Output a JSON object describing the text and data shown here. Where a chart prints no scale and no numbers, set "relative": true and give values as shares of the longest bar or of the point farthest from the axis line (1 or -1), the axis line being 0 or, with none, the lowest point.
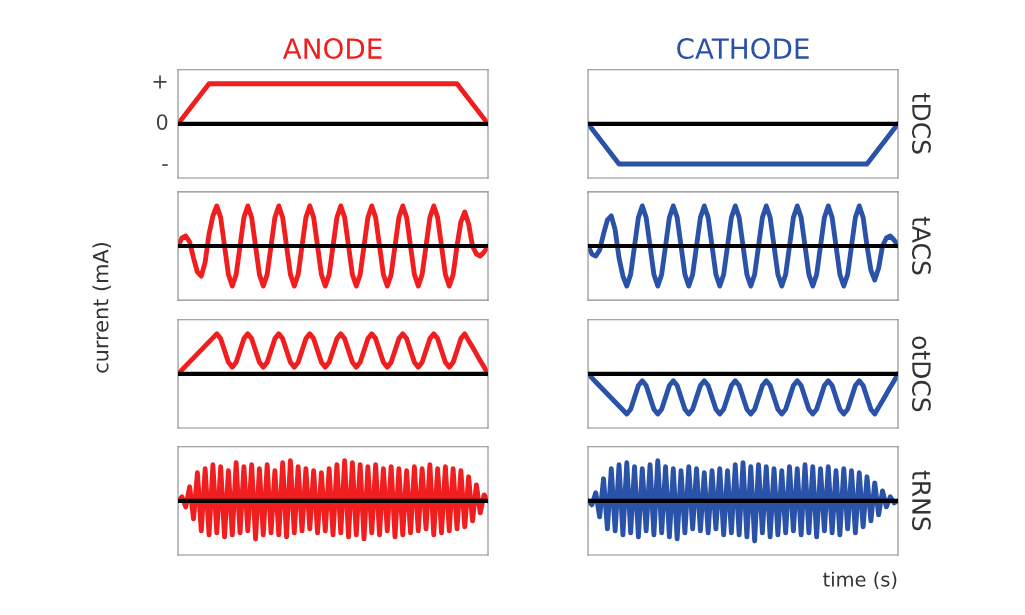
{
  "chart_data": [
    {
      "type": "line",
      "title": "ANODE",
      "ylabel": "current (mA)",
      "relative": true,
      "annotations": [
        "+",
        "0",
        "-"
      ],
      "categories": [
        null,
        null,
        null,
        null,
        null,
        null,
        null,
        null,
        null,
        null,
        null
      ],
      "series": [
        {
          "color": "#f01e1e",
          "values": [
            0,
            1,
            1,
            1,
            1,
            1,
            1,
            1,
            1,
            1,
            0
          ]
        }
      ],
      "ref_lines": [
        {
          "axis": "y",
          "value": 0,
          "color": "#000000"
        }
      ]
    },
    {
      "type": "line",
      "title": "CATHODE",
      "y2label": "tDCS",
      "relative": true,
      "categories": [
        null,
        null,
        null,
        null,
        null,
        null,
        null,
        null,
        null,
        null,
        null
      ],
      "series": [
        {
          "color": "#2a52a8",
          "values": [
            0,
            -1,
            -1,
            -1,
            -1,
            -1,
            -1,
            -1,
            -1,
            -1,
            0
          ]
        }
      ],
      "ref_lines": [
        {
          "axis": "y",
          "value": 0,
          "color": "#000000"
        }
      ]
    },
    {
      "type": "line",
      "relative": true,
      "categories": [
        null,
        null,
        null,
        null,
        null,
        null,
        null,
        null,
        null,
        null,
        null,
        null,
        null,
        null,
        null,
        null,
        null,
        null,
        null,
        null,
        null,
        null,
        null,
        null,
        null,
        null,
        null,
        null,
        null,
        null,
        null,
        null,
        null,
        null,
        null,
        null,
        null,
        null,
        null,
        null,
        null,
        null,
        null,
        null,
        null,
        null,
        null,
        null,
        null,
        null,
        null,
        null,
        null,
        null,
        null,
        null,
        null,
        null,
        null,
        null,
        null,
        null,
        null,
        null,
        null,
        null,
        null,
        null,
        null,
        null,
        null,
        null,
        null,
        null,
        null,
        null,
        null,
        null,
        null,
        null,
        null
      ],
      "series": [
        {
          "color": "#f01e1e",
          "values": [
            0,
            0.2,
            0.25,
            0.1,
            -0.3,
            -0.65,
            -0.75,
            -0.4,
            0.3,
            0.75,
            1,
            0.71,
            0,
            -0.71,
            -1,
            -0.71,
            0,
            0.71,
            1,
            0.71,
            0,
            -0.71,
            -1,
            -0.71,
            0,
            0.71,
            1,
            0.71,
            0,
            -0.71,
            -1,
            -0.71,
            0,
            0.71,
            1,
            0.71,
            0,
            -0.71,
            -1,
            -0.71,
            0,
            0.71,
            1,
            0.71,
            0,
            -0.71,
            -1,
            -0.71,
            0,
            0.71,
            1,
            0.71,
            0,
            -0.71,
            -1,
            -0.71,
            0,
            0.71,
            1,
            0.71,
            0,
            -0.71,
            -1,
            -0.71,
            0,
            0.71,
            1,
            0.71,
            0,
            -0.71,
            -1,
            -0.71,
            0,
            0.6,
            0.85,
            0.55,
            0,
            -0.2,
            -0.25,
            -0.15,
            0
          ]
        }
      ],
      "ref_lines": [
        {
          "axis": "y",
          "value": 0,
          "color": "#000000"
        }
      ]
    },
    {
      "type": "line",
      "y2label": "tACS",
      "relative": true,
      "categories": [
        null,
        null,
        null,
        null,
        null,
        null,
        null,
        null,
        null,
        null,
        null,
        null,
        null,
        null,
        null,
        null,
        null,
        null,
        null,
        null,
        null,
        null,
        null,
        null,
        null,
        null,
        null,
        null,
        null,
        null,
        null,
        null,
        null,
        null,
        null,
        null,
        null,
        null,
        null,
        null,
        null,
        null,
        null,
        null,
        null,
        null,
        null,
        null,
        null,
        null,
        null,
        null,
        null,
        null,
        null,
        null,
        null,
        null,
        null,
        null,
        null,
        null,
        null,
        null,
        null,
        null,
        null,
        null,
        null,
        null,
        null,
        null,
        null,
        null,
        null,
        null,
        null,
        null,
        null,
        null,
        null
      ],
      "series": [
        {
          "color": "#2a52a8",
          "values": [
            0,
            -0.2,
            -0.25,
            -0.1,
            0.3,
            0.65,
            0.75,
            0.4,
            -0.3,
            -0.75,
            -1,
            -0.71,
            0,
            0.71,
            1,
            0.71,
            0,
            -0.71,
            -1,
            -0.71,
            0,
            0.71,
            1,
            0.71,
            0,
            -0.71,
            -1,
            -0.71,
            0,
            0.71,
            1,
            0.71,
            0,
            -0.71,
            -1,
            -0.71,
            0,
            0.71,
            1,
            0.71,
            0,
            -0.71,
            -1,
            -0.71,
            0,
            0.71,
            1,
            0.71,
            0,
            -0.71,
            -1,
            -0.71,
            0,
            0.71,
            1,
            0.71,
            0,
            -0.71,
            -1,
            -0.71,
            0,
            0.71,
            1,
            0.71,
            0,
            -0.71,
            -1,
            -0.71,
            0,
            0.71,
            1,
            0.71,
            0,
            -0.6,
            -0.85,
            -0.55,
            0,
            0.2,
            0.25,
            0.15,
            0
          ]
        }
      ],
      "ref_lines": [
        {
          "axis": "y",
          "value": 0,
          "color": "#000000"
        }
      ]
    },
    {
      "type": "line",
      "relative": true,
      "categories": [
        null,
        null,
        null,
        null,
        null,
        null,
        null,
        null,
        null,
        null,
        null,
        null,
        null,
        null,
        null,
        null,
        null,
        null,
        null,
        null,
        null,
        null,
        null,
        null,
        null,
        null,
        null,
        null,
        null,
        null,
        null,
        null,
        null,
        null,
        null,
        null,
        null,
        null,
        null,
        null,
        null,
        null,
        null,
        null,
        null,
        null,
        null,
        null,
        null,
        null,
        null,
        null,
        null,
        null,
        null,
        null,
        null,
        null,
        null,
        null,
        null,
        null,
        null,
        null,
        null,
        null,
        null,
        null,
        null,
        null,
        null,
        null,
        null,
        null,
        null,
        null,
        null,
        null,
        null,
        null,
        null
      ],
      "series": [
        {
          "color": "#f01e1e",
          "values": [
            0,
            0.1,
            0.2,
            0.3,
            0.4,
            0.5,
            0.6,
            0.7,
            0.8,
            0.9,
            1,
            0.88,
            0.585,
            0.29,
            0.17,
            0.29,
            0.585,
            0.88,
            1,
            0.88,
            0.585,
            0.29,
            0.17,
            0.29,
            0.585,
            0.88,
            1,
            0.88,
            0.585,
            0.29,
            0.17,
            0.29,
            0.585,
            0.88,
            1,
            0.88,
            0.585,
            0.29,
            0.17,
            0.29,
            0.585,
            0.88,
            1,
            0.88,
            0.585,
            0.29,
            0.17,
            0.29,
            0.585,
            0.88,
            1,
            0.88,
            0.585,
            0.29,
            0.17,
            0.29,
            0.585,
            0.88,
            1,
            0.88,
            0.585,
            0.29,
            0.17,
            0.29,
            0.585,
            0.88,
            1,
            0.88,
            0.585,
            0.29,
            0.17,
            0.29,
            0.585,
            0.88,
            1,
            0.83,
            0.67,
            0.5,
            0.33,
            0.17,
            0
          ]
        }
      ],
      "ref_lines": [
        {
          "axis": "y",
          "value": 0,
          "color": "#000000"
        }
      ]
    },
    {
      "type": "line",
      "y2label": "otDCS",
      "relative": true,
      "categories": [
        null,
        null,
        null,
        null,
        null,
        null,
        null,
        null,
        null,
        null,
        null,
        null,
        null,
        null,
        null,
        null,
        null,
        null,
        null,
        null,
        null,
        null,
        null,
        null,
        null,
        null,
        null,
        null,
        null,
        null,
        null,
        null,
        null,
        null,
        null,
        null,
        null,
        null,
        null,
        null,
        null,
        null,
        null,
        null,
        null,
        null,
        null,
        null,
        null,
        null,
        null,
        null,
        null,
        null,
        null,
        null,
        null,
        null,
        null,
        null,
        null,
        null,
        null,
        null,
        null,
        null,
        null,
        null,
        null,
        null,
        null,
        null,
        null,
        null,
        null,
        null,
        null,
        null,
        null,
        null,
        null
      ],
      "series": [
        {
          "color": "#2a52a8",
          "values": [
            0,
            -0.1,
            -0.2,
            -0.3,
            -0.4,
            -0.5,
            -0.6,
            -0.7,
            -0.8,
            -0.9,
            -1,
            -0.88,
            -0.585,
            -0.29,
            -0.17,
            -0.29,
            -0.585,
            -0.88,
            -1,
            -0.88,
            -0.585,
            -0.29,
            -0.17,
            -0.29,
            -0.585,
            -0.88,
            -1,
            -0.88,
            -0.585,
            -0.29,
            -0.17,
            -0.29,
            -0.585,
            -0.88,
            -1,
            -0.88,
            -0.585,
            -0.29,
            -0.17,
            -0.29,
            -0.585,
            -0.88,
            -1,
            -0.88,
            -0.585,
            -0.29,
            -0.17,
            -0.29,
            -0.585,
            -0.88,
            -1,
            -0.88,
            -0.585,
            -0.29,
            -0.17,
            -0.29,
            -0.585,
            -0.88,
            -1,
            -0.88,
            -0.585,
            -0.29,
            -0.17,
            -0.29,
            -0.585,
            -0.88,
            -1,
            -0.88,
            -0.585,
            -0.29,
            -0.17,
            -0.29,
            -0.585,
            -0.88,
            -1,
            -0.83,
            -0.67,
            -0.5,
            -0.33,
            -0.17,
            0
          ]
        }
      ],
      "ref_lines": [
        {
          "axis": "y",
          "value": 0,
          "color": "#000000"
        }
      ]
    },
    {
      "type": "line",
      "relative": true,
      "categories": [
        null,
        null,
        null,
        null,
        null,
        null,
        null,
        null,
        null,
        null,
        null,
        null,
        null,
        null,
        null,
        null,
        null,
        null,
        null,
        null,
        null,
        null,
        null,
        null,
        null,
        null,
        null,
        null,
        null,
        null,
        null,
        null,
        null,
        null,
        null,
        null,
        null,
        null,
        null,
        null,
        null,
        null,
        null,
        null,
        null,
        null,
        null,
        null,
        null,
        null,
        null,
        null,
        null,
        null,
        null,
        null,
        null,
        null,
        null,
        null,
        null,
        null,
        null,
        null,
        null,
        null,
        null,
        null,
        null,
        null,
        null,
        null,
        null,
        null,
        null,
        null,
        null,
        null,
        null,
        null,
        null
      ],
      "series": [
        {
          "color": "#f01e1e",
          "values": [
            0,
            0.1,
            -0.15,
            0.35,
            -0.45,
            0.7,
            -0.75,
            0.8,
            -0.85,
            0.9,
            -0.8,
            0.85,
            -0.9,
            0.75,
            -0.85,
            0.95,
            -0.8,
            0.85,
            -0.75,
            0.9,
            -0.95,
            0.8,
            -0.85,
            0.9,
            -0.8,
            0.75,
            -0.85,
            0.95,
            -0.9,
            1,
            -0.8,
            0.85,
            -0.75,
            0.8,
            -0.7,
            0.75,
            -0.8,
            0.7,
            -0.75,
            0.8,
            -0.85,
            0.9,
            -0.8,
            1,
            -0.9,
            0.95,
            -0.85,
            0.9,
            -0.95,
            0.85,
            -0.8,
            0.9,
            -0.85,
            0.8,
            -0.75,
            0.85,
            -0.9,
            0.8,
            -0.85,
            0.75,
            -0.8,
            0.85,
            -0.75,
            0.8,
            -0.7,
            0.9,
            -0.85,
            0.8,
            -0.8,
            0.85,
            -0.75,
            0.8,
            -0.7,
            0.75,
            -0.65,
            0.6,
            -0.5,
            0.4,
            -0.3,
            0.15,
            0
          ]
        }
      ],
      "ref_lines": [
        {
          "axis": "y",
          "value": 0,
          "color": "#000000"
        }
      ]
    },
    {
      "type": "line",
      "y2label": "tRNS",
      "xlabel": "time (s)",
      "relative": true,
      "categories": [
        null,
        null,
        null,
        null,
        null,
        null,
        null,
        null,
        null,
        null,
        null,
        null,
        null,
        null,
        null,
        null,
        null,
        null,
        null,
        null,
        null,
        null,
        null,
        null,
        null,
        null,
        null,
        null,
        null,
        null,
        null,
        null,
        null,
        null,
        null,
        null,
        null,
        null,
        null,
        null,
        null,
        null,
        null,
        null,
        null,
        null,
        null,
        null,
        null,
        null,
        null,
        null,
        null,
        null,
        null,
        null,
        null,
        null,
        null,
        null,
        null,
        null,
        null,
        null,
        null,
        null,
        null,
        null,
        null,
        null,
        null,
        null,
        null,
        null,
        null,
        null,
        null,
        null,
        null,
        null,
        null
      ],
      "series": [
        {
          "color": "#2a52a8",
          "values": [
            0,
            -0.1,
            0.2,
            -0.4,
            0.55,
            -0.7,
            0.8,
            -0.75,
            0.9,
            -0.85,
            0.95,
            -0.8,
            0.85,
            -0.9,
            0.8,
            -0.75,
            0.9,
            -0.85,
            1,
            -0.8,
            0.85,
            -0.9,
            0.8,
            -0.95,
            0.75,
            -0.8,
            0.85,
            -0.7,
            0.8,
            -0.75,
            0.7,
            -0.8,
            0.75,
            -0.7,
            0.8,
            -0.85,
            0.75,
            -0.8,
            0.9,
            -0.85,
            0.95,
            -0.9,
            0.85,
            -1,
            0.9,
            -0.8,
            0.85,
            -0.9,
            0.8,
            -0.85,
            0.75,
            -0.8,
            0.85,
            -0.75,
            0.8,
            -0.85,
            0.9,
            -0.8,
            0.85,
            -0.9,
            0.8,
            -0.75,
            0.85,
            -0.8,
            0.75,
            -0.85,
            0.8,
            -0.7,
            0.75,
            -0.8,
            0.7,
            -0.65,
            0.6,
            -0.5,
            0.45,
            -0.35,
            0.25,
            -0.15,
            0.1,
            -0.05,
            0
          ]
        }
      ],
      "ref_lines": [
        {
          "axis": "y",
          "value": 0,
          "color": "#000000"
        }
      ]
    }
  ]
}
